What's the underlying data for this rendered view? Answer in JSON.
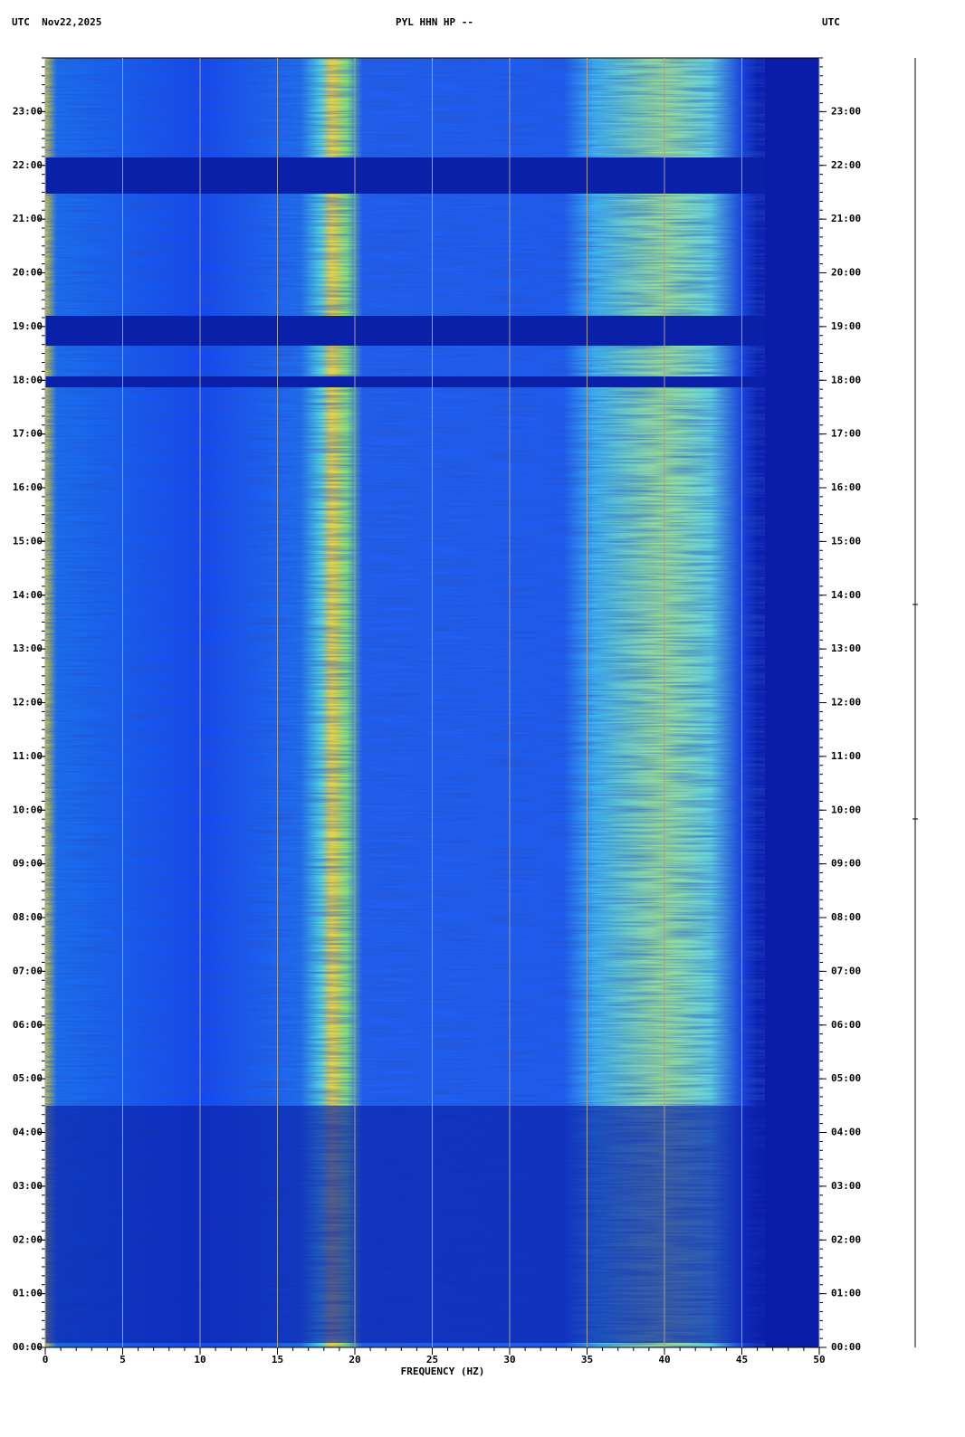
{
  "chart_data": {
    "type": "spectrogram",
    "header_left": "UTC  Nov22,2025",
    "title": "PYL HHN HP --",
    "header_right": "UTC",
    "x_label": "FREQUENCY (HZ)",
    "xlim": [
      0,
      50
    ],
    "xticks": [
      0,
      5,
      10,
      15,
      20,
      25,
      30,
      35,
      40,
      45,
      50
    ],
    "ylim": [
      0,
      24
    ],
    "yticks": [
      {
        "value": 0,
        "label": "00:00"
      },
      {
        "value": 1,
        "label": "01:00"
      },
      {
        "value": 2,
        "label": "02:00"
      },
      {
        "value": 3,
        "label": "03:00"
      },
      {
        "value": 4,
        "label": "04:00"
      },
      {
        "value": 5,
        "label": "05:00"
      },
      {
        "value": 6,
        "label": "06:00"
      },
      {
        "value": 7,
        "label": "07:00"
      },
      {
        "value": 8,
        "label": "08:00"
      },
      {
        "value": 9,
        "label": "09:00"
      },
      {
        "value": 10,
        "label": "10:00"
      },
      {
        "value": 11,
        "label": "11:00"
      },
      {
        "value": 12,
        "label": "12:00"
      },
      {
        "value": 13,
        "label": "13:00"
      },
      {
        "value": 14,
        "label": "14:00"
      },
      {
        "value": 15,
        "label": "15:00"
      },
      {
        "value": 16,
        "label": "16:00"
      },
      {
        "value": 17,
        "label": "17:00"
      },
      {
        "value": 18,
        "label": "18:00"
      },
      {
        "value": 19,
        "label": "19:00"
      },
      {
        "value": 20,
        "label": "20:00"
      },
      {
        "value": 21,
        "label": "21:00"
      },
      {
        "value": 22,
        "label": "22:00"
      },
      {
        "value": 23,
        "label": "23:00"
      }
    ],
    "grid": true,
    "grid_color": "#a0a0a0"
  }
}
